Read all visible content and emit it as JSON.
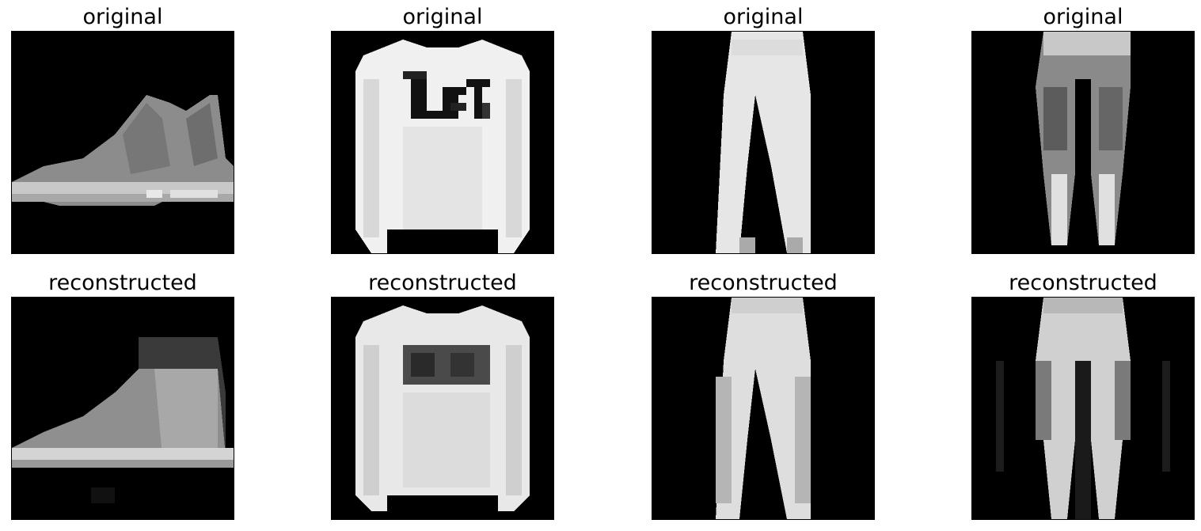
{
  "figure": {
    "panels": [
      {
        "title": "original",
        "item": "ankle boot"
      },
      {
        "title": "original",
        "item": "pullover"
      },
      {
        "title": "original",
        "item": "trouser"
      },
      {
        "title": "original",
        "item": "trouser"
      },
      {
        "title": "reconstructed",
        "item": "ankle boot"
      },
      {
        "title": "reconstructed",
        "item": "pullover"
      },
      {
        "title": "reconstructed",
        "item": "trouser"
      },
      {
        "title": "reconstructed",
        "item": "trouser"
      }
    ]
  },
  "colors": {
    "background": "#ffffff",
    "image_background": "#000000"
  }
}
